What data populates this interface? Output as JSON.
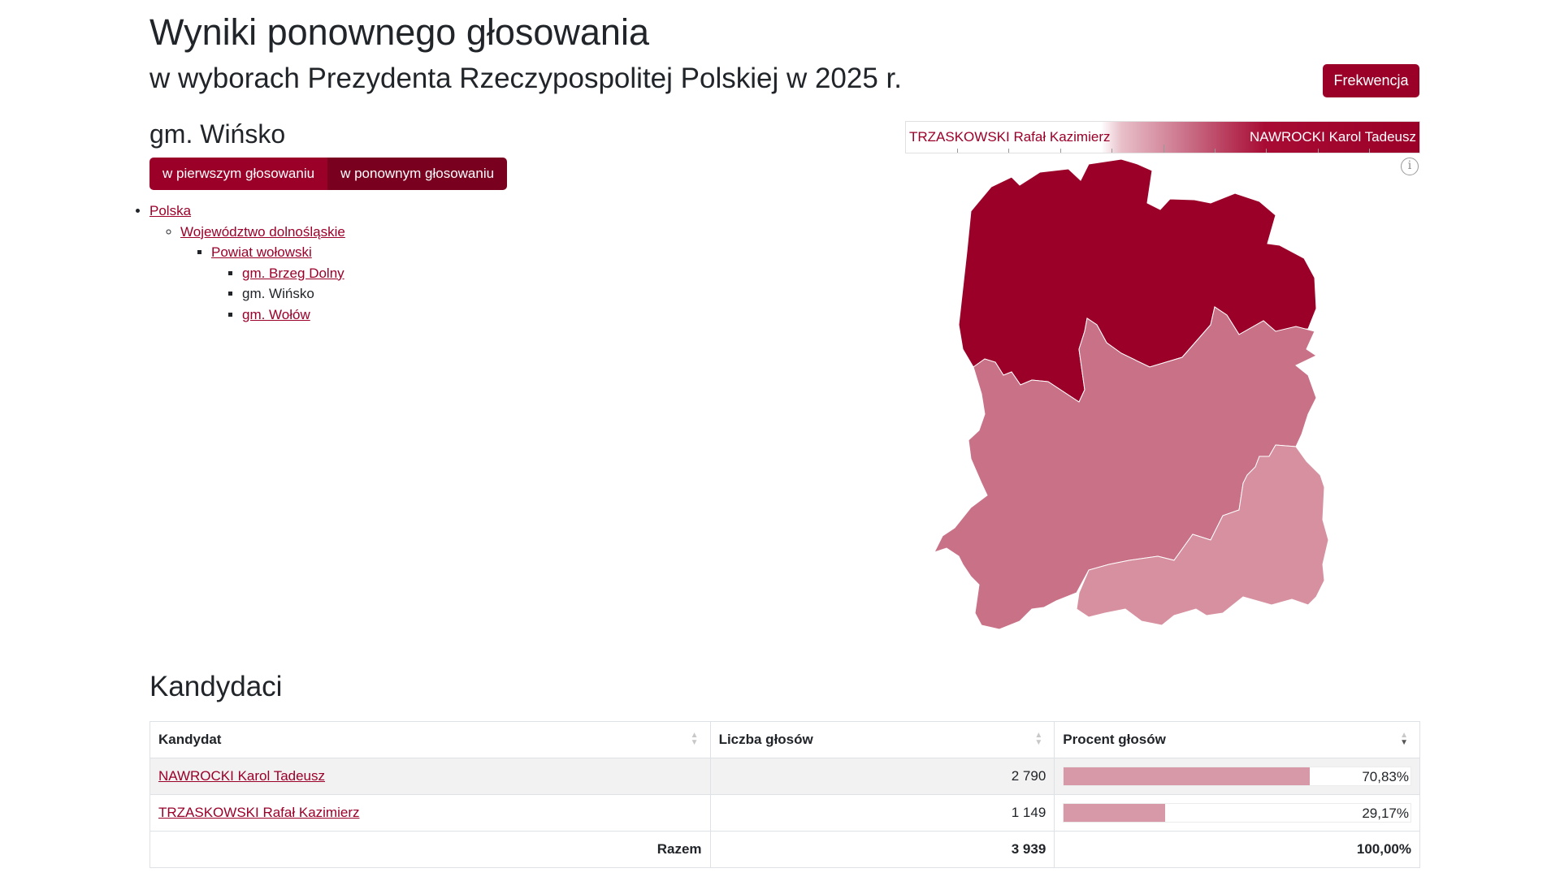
{
  "header": {
    "title": "Wyniki ponownego głosowania",
    "subtitle": "w wyborach Prezydenta Rzeczypospolitej Polskiej w 2025 r.",
    "turnout_button": "Frekwencja"
  },
  "area": {
    "name": "gm. Wińsko",
    "tabs": [
      "w pierwszym głosowaniu",
      "w ponownym głosowaniu"
    ],
    "active_tab": "w ponownym głosowaniu"
  },
  "breadcrumbs": {
    "country": "Polska",
    "voivodeship": "Województwo dolnośląskie",
    "county": "Powiat wołowski",
    "municipalities": [
      "gm. Brzeg Dolny",
      "gm. Wińsko",
      "gm. Wołów"
    ]
  },
  "legend": {
    "left": "TRZASKOWSKI Rafał Kazimierz",
    "right": "NAWROCKI Karol Tadeusz",
    "colors": {
      "low": "#ffffff",
      "high": "#9b0029"
    }
  },
  "map": {
    "region_colors": [
      "#9b0029",
      "#c87187",
      "#d7909f"
    ],
    "icon": "info-icon"
  },
  "candidates": {
    "title": "Kandydaci",
    "headers": [
      "Kandydat",
      "Liczba głosów",
      "Procent głosów"
    ],
    "rows": [
      {
        "name": "NAWROCKI Karol Tadeusz",
        "votes": "2 790",
        "percent": "70,83%",
        "share": 0.7083
      },
      {
        "name": "TRZASKOWSKI Rafał Kazimierz",
        "votes": "1 149",
        "percent": "29,17%",
        "share": 0.2917
      }
    ],
    "total_label": "Razem",
    "total_votes": "3 939",
    "total_percent": "100,00%"
  },
  "colors": {
    "accent": "#9b0029",
    "accent_dark": "#7a0020",
    "bar_fill": "#d799a8"
  }
}
